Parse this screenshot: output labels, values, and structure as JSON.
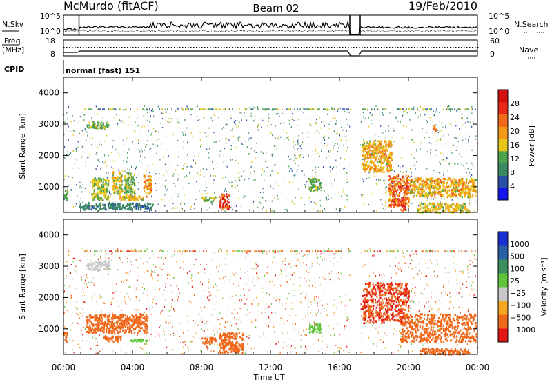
{
  "header": {
    "station": "McMurdo (fitACF)",
    "beam": "Beam 02",
    "date": "19/Feb/2010"
  },
  "top_panels": {
    "nsky_label": "N.Sky",
    "nsky_ticks": [
      "10^5",
      "10^0"
    ],
    "nsearch_label": "N.Search",
    "nsearch_ticks": [
      "10^5",
      "10^0"
    ],
    "freq_label": "Freq.",
    "freq_unit": "[MHz]",
    "freq_ticks": [
      "18",
      "8"
    ],
    "nave_label": "Nave",
    "nave_ticks": [
      "60",
      "0"
    ],
    "cpid_label": "CPID",
    "cpid_value": "normal (fast) 151"
  },
  "x_axis": {
    "label": "Time UT",
    "ticks": [
      "00:00",
      "04:00",
      "08:00",
      "12:00",
      "16:00",
      "20:00",
      "00:00"
    ]
  },
  "colors": {
    "power": [
      "#1515f0",
      "#2a4fa8",
      "#3c8a64",
      "#4fa34f",
      "#e6c619",
      "#f59a16",
      "#f0681a",
      "#e8291a",
      "#d40f0f"
    ],
    "velocity": [
      "#e31616",
      "#f0681a",
      "#f5a623",
      "#c8c8c8",
      "#5fc43a",
      "#3d8f5f",
      "#2a5fa8",
      "#1a2fd0"
    ]
  },
  "chart_data": [
    {
      "type": "heatmap",
      "panel": "power",
      "ylabel": "Slant Range [km]",
      "xlabel": "Time UT",
      "xlim_hours": [
        0,
        24
      ],
      "ylim": [
        180,
        4500
      ],
      "yticks": [
        1000,
        2000,
        3000,
        4000
      ],
      "colorbar_label": "Power [dB]",
      "colorbar_ticks": [
        "28",
        "24",
        "20",
        "16",
        "12",
        "8",
        "4"
      ],
      "regions": [
        {
          "t": [
            0.0,
            0.2
          ],
          "r": [
            600,
            900
          ],
          "v": 12
        },
        {
          "t": [
            0.9,
            5.2
          ],
          "r": [
            300,
            500
          ],
          "v": 8
        },
        {
          "t": [
            1.3,
            2.6
          ],
          "r": [
            2900,
            3100
          ],
          "v": 12
        },
        {
          "t": [
            1.6,
            2.6
          ],
          "r": [
            600,
            1300
          ],
          "v": 14
        },
        {
          "t": [
            2.8,
            3.4
          ],
          "r": [
            800,
            1500
          ],
          "v": 16
        },
        {
          "t": [
            3.5,
            4.1
          ],
          "r": [
            600,
            1500
          ],
          "v": 13
        },
        {
          "t": [
            3.2,
            4.8
          ],
          "r": [
            600,
            750
          ],
          "v": 18
        },
        {
          "t": [
            4.6,
            5.1
          ],
          "r": [
            800,
            1400
          ],
          "v": 20
        },
        {
          "t": [
            9.0,
            9.6
          ],
          "r": [
            300,
            800
          ],
          "v": 26
        },
        {
          "t": [
            8.0,
            8.8
          ],
          "r": [
            550,
            700
          ],
          "v": 14
        },
        {
          "t": [
            14.2,
            14.9
          ],
          "r": [
            900,
            1300
          ],
          "v": 12
        },
        {
          "t": [
            17.3,
            19.0
          ],
          "r": [
            1500,
            2500
          ],
          "v": 18
        },
        {
          "t": [
            18.8,
            20.0
          ],
          "r": [
            400,
            1400
          ],
          "v": 22
        },
        {
          "t": [
            19.5,
            19.8
          ],
          "r": [
            250,
            700
          ],
          "v": 27
        },
        {
          "t": [
            20.0,
            23.9
          ],
          "r": [
            700,
            1300
          ],
          "v": 18
        },
        {
          "t": [
            21.3,
            21.6
          ],
          "r": [
            2800,
            3000
          ],
          "v": 20
        },
        {
          "t": [
            20.5,
            23.5
          ],
          "r": [
            200,
            500
          ],
          "v": 16
        }
      ]
    },
    {
      "type": "heatmap",
      "panel": "velocity",
      "ylabel": "Slant Range [km]",
      "xlabel": "Time UT",
      "xlim_hours": [
        0,
        24
      ],
      "ylim": [
        180,
        4500
      ],
      "yticks": [
        1000,
        2000,
        3000,
        4000
      ],
      "colorbar_label": "Velocity [m s⁻¹]",
      "colorbar_ticks": [
        "1000",
        "500",
        "100",
        "25",
        "−25",
        "−100",
        "−500",
        "−1000"
      ],
      "regions": [
        {
          "t": [
            0.0,
            0.2
          ],
          "r": [
            600,
            900
          ],
          "v": -300
        },
        {
          "t": [
            1.3,
            2.6
          ],
          "r": [
            2900,
            3200
          ],
          "v": 10
        },
        {
          "t": [
            1.3,
            4.8
          ],
          "r": [
            900,
            1500
          ],
          "v": -400
        },
        {
          "t": [
            2.3,
            3.3
          ],
          "r": [
            600,
            800
          ],
          "v": -200
        },
        {
          "t": [
            3.8,
            4.8
          ],
          "r": [
            600,
            700
          ],
          "v": 60
        },
        {
          "t": [
            8.0,
            8.8
          ],
          "r": [
            550,
            750
          ],
          "v": -300
        },
        {
          "t": [
            9.0,
            10.4
          ],
          "r": [
            250,
            900
          ],
          "v": -300
        },
        {
          "t": [
            14.2,
            14.9
          ],
          "r": [
            900,
            1200
          ],
          "v": 40
        },
        {
          "t": [
            17.3,
            20.0
          ],
          "r": [
            1200,
            2500
          ],
          "v": -500
        },
        {
          "t": [
            19.5,
            23.9
          ],
          "r": [
            600,
            1500
          ],
          "v": -350
        },
        {
          "t": [
            20.5,
            23.5
          ],
          "r": [
            200,
            400
          ],
          "v": -150
        }
      ]
    }
  ]
}
